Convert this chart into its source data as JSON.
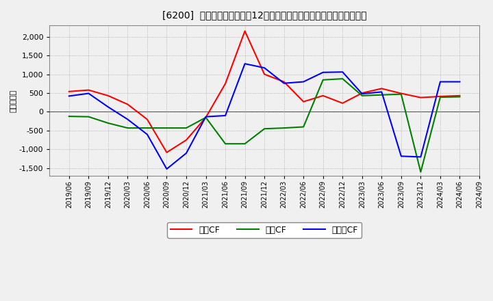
{
  "title": "[6200]  キャッシュフローの12か月移動合計の対前年同期増減額の推移",
  "ylabel": "（百万円）",
  "legend_eigyo": "営業CF",
  "legend_toshi": "投資CF",
  "legend_free": "フリーCF",
  "x_labels": [
    "2019/06",
    "2019/09",
    "2019/12",
    "2020/03",
    "2020/06",
    "2020/09",
    "2020/12",
    "2021/03",
    "2021/06",
    "2021/09",
    "2021/12",
    "2022/03",
    "2022/06",
    "2022/09",
    "2022/12",
    "2023/03",
    "2023/06",
    "2023/09",
    "2023/12",
    "2024/03",
    "2024/06",
    "2024/09"
  ],
  "eigyo_cf": [
    540,
    580,
    430,
    200,
    -200,
    -1080,
    -750,
    -150,
    750,
    2150,
    1000,
    800,
    270,
    430,
    230,
    500,
    620,
    490,
    380,
    410,
    430,
    null
  ],
  "toshi_cf": [
    -120,
    -130,
    -300,
    -430,
    -430,
    -430,
    -430,
    -150,
    -850,
    -850,
    -450,
    -430,
    -400,
    850,
    880,
    430,
    450,
    470,
    -1600,
    390,
    400,
    null
  ],
  "free_cf": [
    420,
    490,
    130,
    -200,
    -600,
    -1520,
    -1100,
    -130,
    -100,
    1280,
    1170,
    760,
    800,
    1050,
    1060,
    480,
    530,
    -1180,
    -1200,
    800,
    800,
    null
  ],
  "ylim": [
    -1700,
    2300
  ],
  "yticks": [
    -1500,
    -1000,
    -500,
    0,
    500,
    1000,
    1500,
    2000
  ],
  "line_color_eigyo": "#ff0000",
  "line_color_toshi": "#008000",
  "line_color_free": "#0000ff",
  "bg_color": "#f0f0f0",
  "plot_bg_color": "#f0f0f0",
  "grid_color": "#999999",
  "zero_line_color": "#444444"
}
